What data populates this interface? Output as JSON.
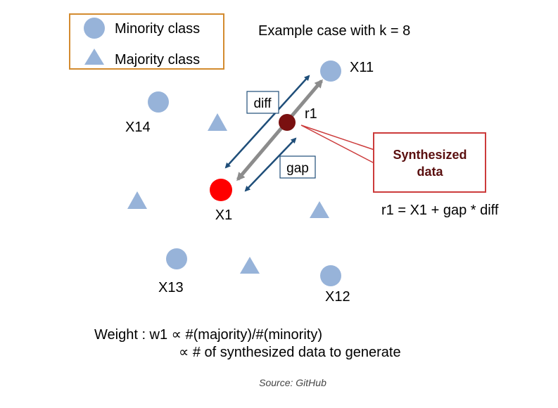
{
  "legend": {
    "minority_label": "Minority class",
    "majority_label": "Majority class",
    "border_color": "#d38b2f"
  },
  "header": {
    "text": "Example case with k = 8"
  },
  "points": {
    "x1": "X1",
    "x11": "X11",
    "x12": "X12",
    "x13": "X13",
    "x14": "X14",
    "r1": "r1"
  },
  "labels": {
    "diff": "diff",
    "gap": "gap"
  },
  "callout": {
    "line1": "Synthesized",
    "line2": "data",
    "border_color": "#cc3b3b",
    "text_color": "#5a0f0f"
  },
  "formula": "r1 = X1 + gap * diff",
  "weight": {
    "line1": "Weight : w1 ∝ #(majority)/#(minority)",
    "line2": "∝ # of synthesized data to generate"
  },
  "source": "Source: GitHub",
  "colors": {
    "minority": "#97b3d9",
    "majority": "#97b3d9",
    "x1": "#ff0000",
    "r1": "#7a1010",
    "arrow_blue": "#1f4e79",
    "arrow_gray": "#8c8c8c"
  }
}
